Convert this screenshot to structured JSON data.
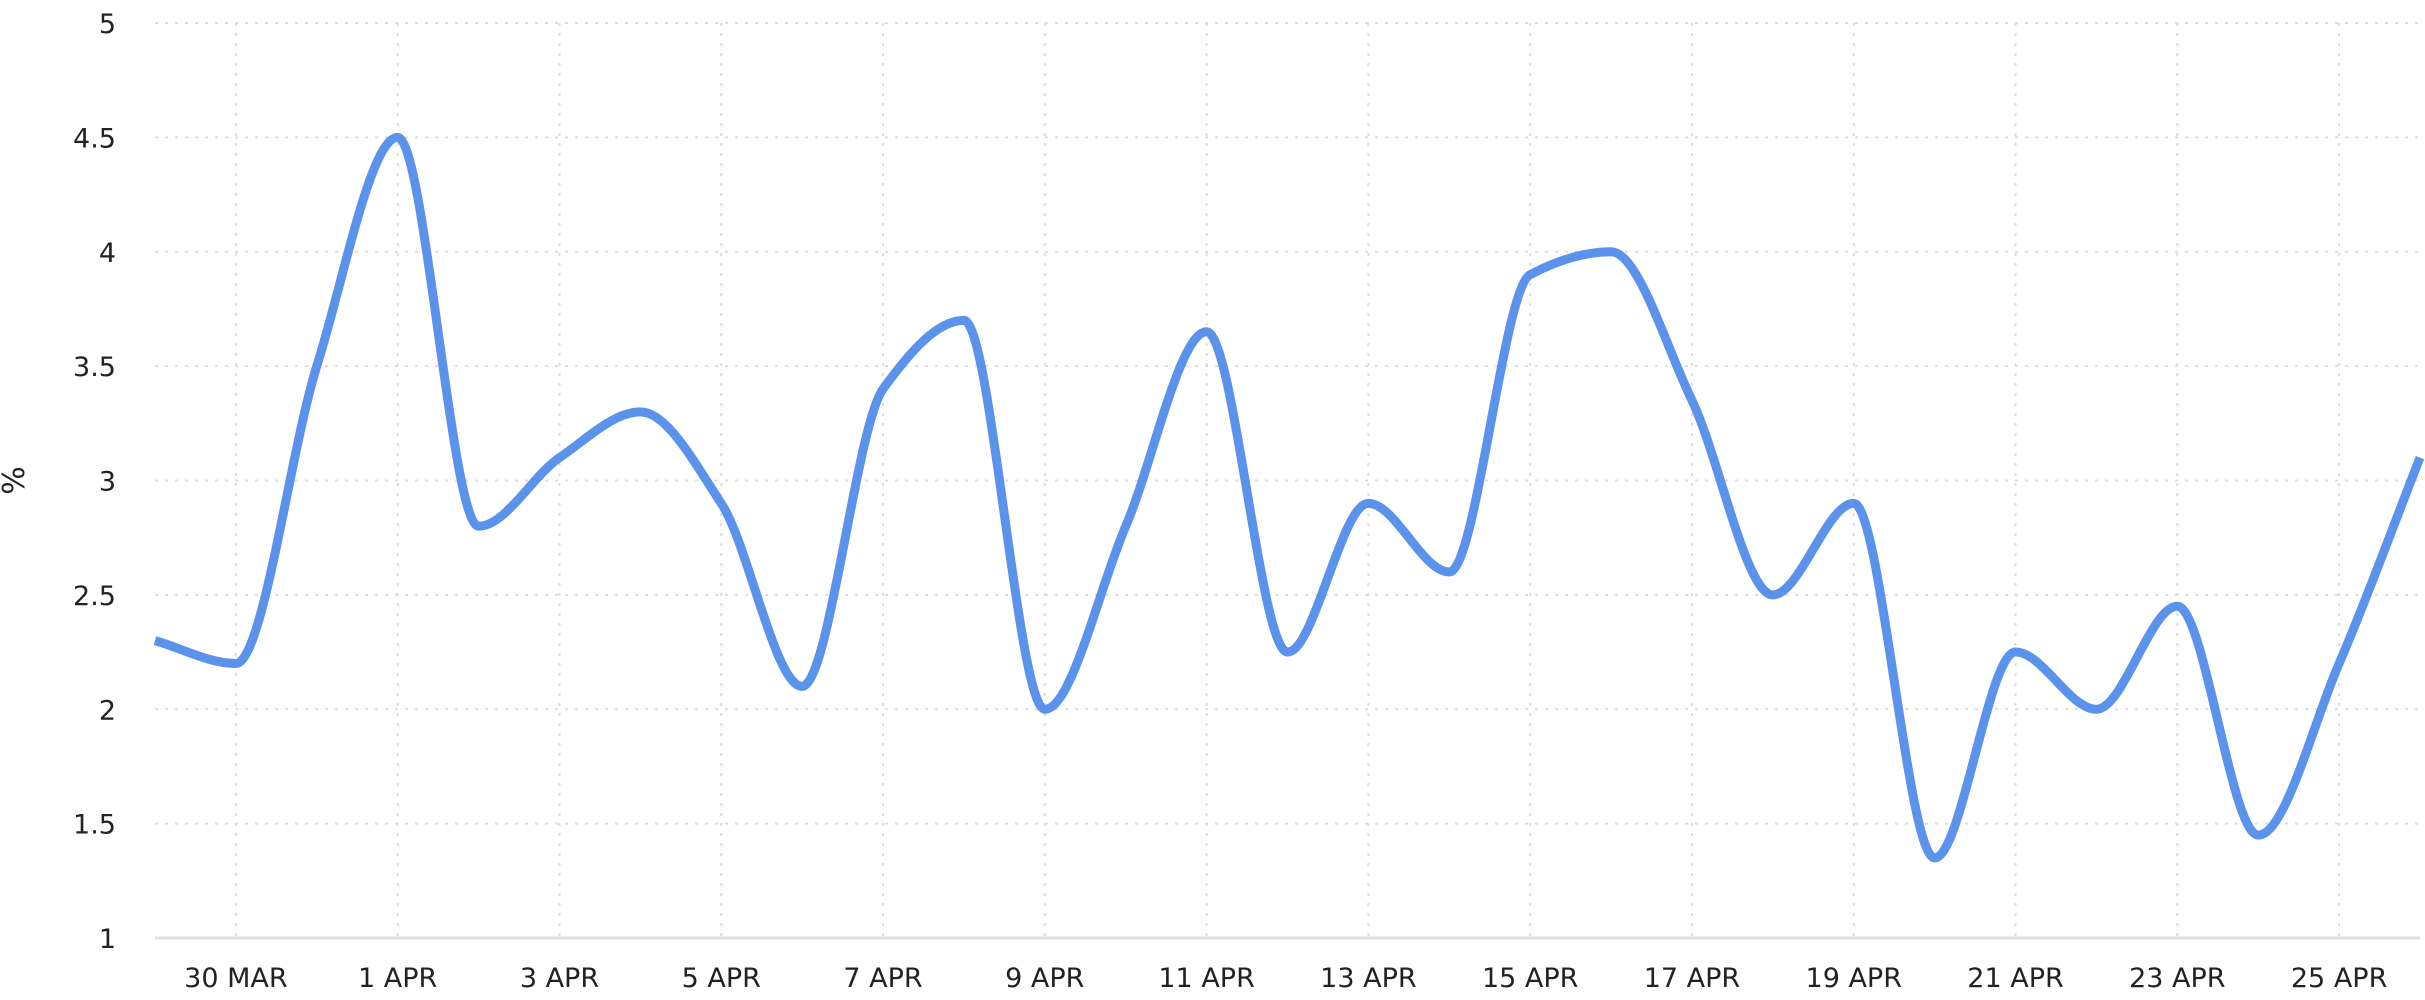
{
  "chart_data": {
    "type": "line",
    "xlabel": "",
    "ylabel": "%",
    "ylim": [
      1,
      5
    ],
    "y_ticks": [
      "1",
      "1.5",
      "2",
      "2.5",
      "3",
      "3.5",
      "4",
      "4.5",
      "5"
    ],
    "x_tick_labels": [
      "30 MAR",
      "1 APR",
      "3 APR",
      "5 APR",
      "7 APR",
      "9 APR",
      "11 APR",
      "13 APR",
      "15 APR",
      "17 APR",
      "19 APR",
      "21 APR",
      "23 APR",
      "25 APR"
    ],
    "x": [
      "29 MAR",
      "30 MAR",
      "31 MAR",
      "1 APR",
      "2 APR",
      "3 APR",
      "4 APR",
      "5 APR",
      "6 APR",
      "7 APR",
      "8 APR",
      "9 APR",
      "10 APR",
      "11 APR",
      "12 APR",
      "13 APR",
      "14 APR",
      "15 APR",
      "16 APR",
      "17 APR",
      "18 APR",
      "19 APR",
      "20 APR",
      "21 APR",
      "22 APR",
      "23 APR",
      "24 APR",
      "25 APR",
      "26 APR"
    ],
    "series": [
      {
        "values": [
          2.3,
          2.2,
          3.5,
          4.5,
          2.8,
          3.1,
          3.3,
          2.9,
          2.1,
          3.4,
          3.7,
          2.0,
          2.8,
          3.65,
          2.25,
          2.9,
          2.6,
          3.9,
          4.0,
          3.35,
          2.5,
          2.9,
          1.35,
          2.25,
          2.0,
          2.45,
          1.45,
          2.2,
          3.1
        ]
      }
    ],
    "grid": true,
    "legend": "none",
    "line_color": "#5b93ec",
    "grid_color": "#dddddd",
    "axis_color": "#e0e0e0",
    "text_color": "#222222"
  }
}
